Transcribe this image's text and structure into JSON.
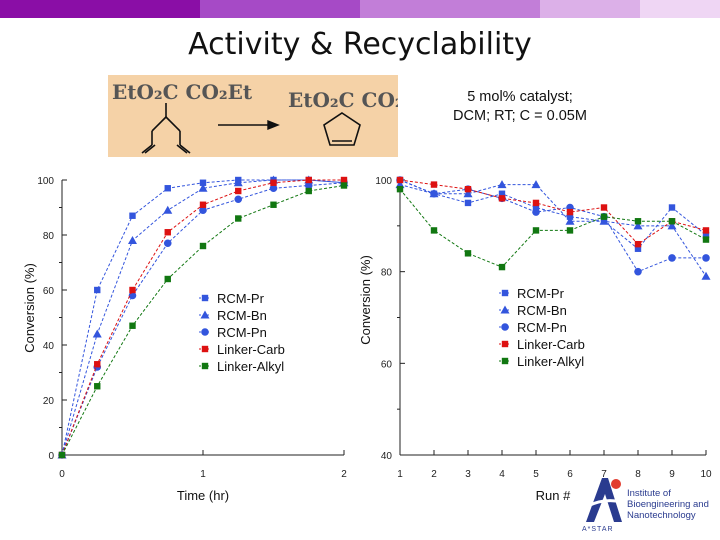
{
  "title": "Activity & Recyclability",
  "conditions": {
    "line1": "5 mol% catalyst;",
    "line2": "DCM; RT; C = 0.05M"
  },
  "logo": {
    "institute_lines": [
      "Institute of",
      "Bioengineering and",
      "Nanotechnology"
    ],
    "astar": "A*STAR"
  },
  "colors": {
    "RCM-Pr": "#3355dd",
    "RCM-Bn": "#3355dd",
    "RCM-Pn": "#3355dd",
    "Linker-Carb": "#dd1111",
    "Linker-Alkyl": "#117711",
    "banner": [
      "#8a0ea6",
      "#a64ac6",
      "#c27ed8",
      "#dcb0e8",
      "#efd6f4"
    ]
  },
  "chart_data": [
    {
      "type": "line",
      "xlabel": "Time (hr)",
      "ylabel": "Conversion (%)",
      "xlim": [
        0,
        2
      ],
      "ylim": [
        0,
        100
      ],
      "xticks": [
        0,
        1,
        2
      ],
      "yticks": [
        0,
        20,
        40,
        60,
        80,
        100
      ],
      "legend_position": "center-right",
      "series": [
        {
          "name": "RCM-Pr",
          "marker": "square",
          "x": [
            0,
            0.25,
            0.5,
            0.75,
            1.0,
            1.25,
            1.5,
            1.75,
            2.0
          ],
          "y": [
            0,
            60,
            87,
            97,
            99,
            100,
            100,
            100,
            99
          ]
        },
        {
          "name": "RCM-Bn",
          "marker": "triangle",
          "x": [
            0,
            0.25,
            0.5,
            0.75,
            1.0,
            1.25,
            1.5,
            1.75,
            2.0
          ],
          "y": [
            0,
            44,
            78,
            89,
            97,
            99,
            100,
            100,
            99
          ]
        },
        {
          "name": "RCM-Pn",
          "marker": "circle",
          "x": [
            0,
            0.25,
            0.5,
            0.75,
            1.0,
            1.25,
            1.5,
            1.75,
            2.0
          ],
          "y": [
            0,
            32,
            58,
            77,
            89,
            93,
            97,
            98,
            99
          ]
        },
        {
          "name": "Linker-Carb",
          "marker": "square",
          "x": [
            0,
            0.25,
            0.5,
            0.75,
            1.0,
            1.25,
            1.5,
            1.75,
            2.0
          ],
          "y": [
            0,
            33,
            60,
            81,
            91,
            96,
            99,
            100,
            100
          ]
        },
        {
          "name": "Linker-Alkyl",
          "marker": "square",
          "x": [
            0,
            0.25,
            0.5,
            0.75,
            1.0,
            1.25,
            1.5,
            1.75,
            2.0
          ],
          "y": [
            0,
            25,
            47,
            64,
            76,
            86,
            91,
            96,
            98
          ]
        }
      ]
    },
    {
      "type": "line",
      "xlabel": "Run #",
      "ylabel": "Conversion (%)",
      "xlim": [
        1,
        10
      ],
      "ylim": [
        40,
        100
      ],
      "xticks": [
        1,
        2,
        3,
        4,
        5,
        6,
        7,
        8,
        9,
        10
      ],
      "yticks": [
        40,
        60,
        80,
        100
      ],
      "legend_position": "center-right",
      "series": [
        {
          "name": "RCM-Pr",
          "marker": "square",
          "x": [
            1,
            2,
            3,
            4,
            5,
            6,
            7,
            8,
            9,
            10
          ],
          "y": [
            100,
            97,
            95,
            97,
            94,
            92,
            91,
            85,
            94,
            88
          ]
        },
        {
          "name": "RCM-Bn",
          "marker": "triangle",
          "x": [
            1,
            2,
            3,
            4,
            5,
            6,
            7,
            8,
            9,
            10
          ],
          "y": [
            99,
            97,
            97,
            99,
            99,
            91,
            91,
            90,
            90,
            79
          ]
        },
        {
          "name": "RCM-Pn",
          "marker": "circle",
          "x": [
            1,
            2,
            3,
            4,
            5,
            6,
            7,
            8,
            9,
            10
          ],
          "y": [
            100,
            97,
            98,
            96,
            93,
            94,
            92,
            80,
            83,
            83
          ]
        },
        {
          "name": "Linker-Carb",
          "marker": "square",
          "x": [
            1,
            2,
            3,
            4,
            5,
            6,
            7,
            8,
            9,
            10
          ],
          "y": [
            100,
            99,
            98,
            96,
            95,
            93,
            94,
            86,
            91,
            89
          ]
        },
        {
          "name": "Linker-Alkyl",
          "marker": "square",
          "x": [
            1,
            2,
            3,
            4,
            5,
            6,
            7,
            8,
            9,
            10
          ],
          "y": [
            98,
            89,
            84,
            81,
            89,
            89,
            92,
            91,
            91,
            87
          ]
        }
      ]
    }
  ]
}
